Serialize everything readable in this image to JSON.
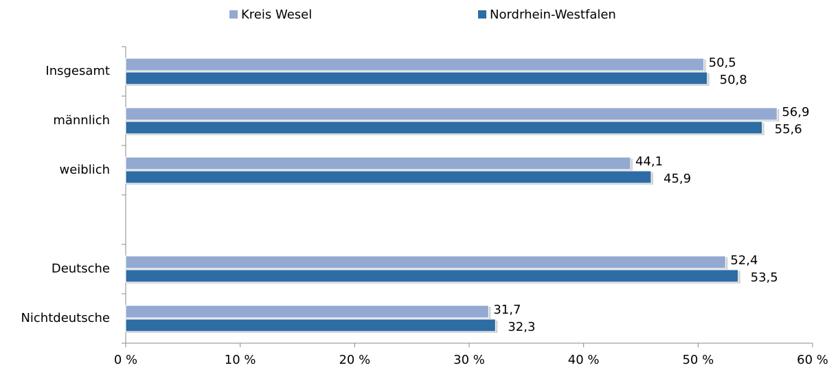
{
  "chart_data": {
    "type": "hbar",
    "categories": [
      "Insgesamt",
      "männlich",
      "weiblich",
      null,
      "Deutsche",
      "Nichtdeutsche"
    ],
    "series": [
      {
        "name": "Kreis Wesel",
        "color": "#93a9d1",
        "values": [
          50.5,
          56.9,
          44.1,
          null,
          52.4,
          31.7
        ],
        "value_labels": [
          "50,5",
          "56,9",
          "44,1",
          null,
          "52,4",
          "31,7"
        ]
      },
      {
        "name": "Nordrhein-Westfalen",
        "color": "#2e6ca4",
        "values": [
          50.8,
          55.6,
          45.9,
          null,
          53.5,
          32.3
        ],
        "value_labels": [
          "50,8",
          "55,6",
          "45,9",
          null,
          "53,5",
          "32,3"
        ]
      }
    ],
    "xlim": [
      0,
      60
    ],
    "xticks": [
      {
        "value": 0,
        "label": "0 %"
      },
      {
        "value": 10,
        "label": "10 %"
      },
      {
        "value": 20,
        "label": "20 %"
      },
      {
        "value": 30,
        "label": "30 %"
      },
      {
        "value": 40,
        "label": "40 %"
      },
      {
        "value": 50,
        "label": "50 %"
      },
      {
        "value": 60,
        "label": "60 %"
      }
    ],
    "legend": "top"
  }
}
